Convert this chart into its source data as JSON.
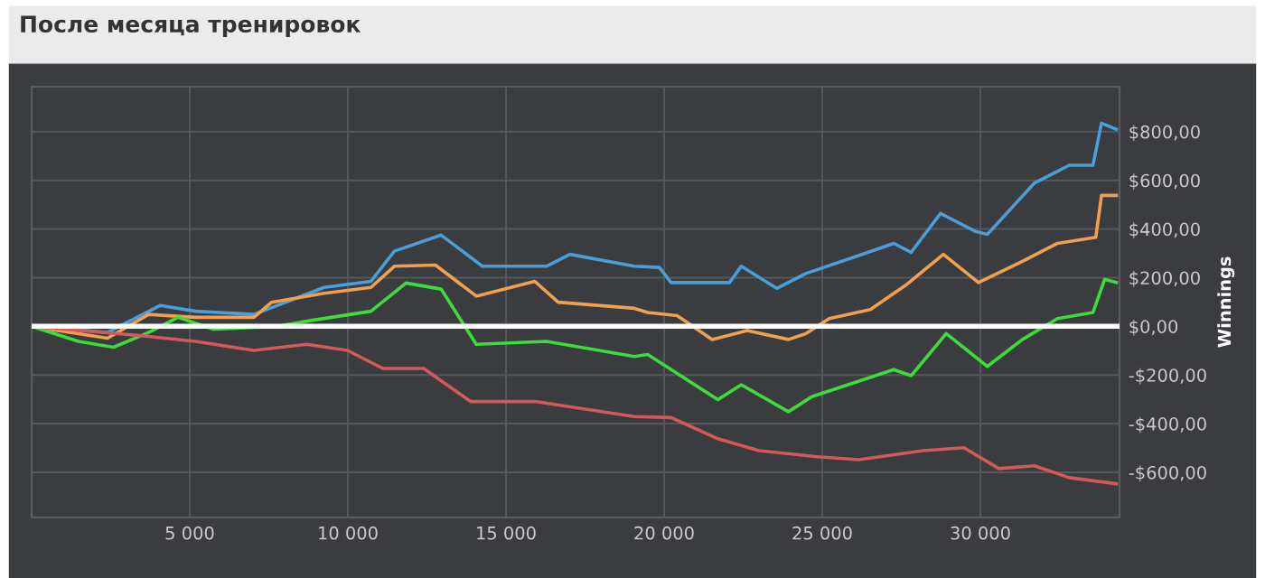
{
  "chart_data": {
    "type": "line",
    "title": "После месяца тренировок",
    "ylabel": "Winnings",
    "xlim": [
      0,
      34400
    ],
    "ylim": [
      -785,
      985
    ],
    "xticks": [
      {
        "value": 5000,
        "label": "5 000"
      },
      {
        "value": 10000,
        "label": "10 000"
      },
      {
        "value": 15000,
        "label": "15 000"
      },
      {
        "value": 20000,
        "label": "20 000"
      },
      {
        "value": 25000,
        "label": "25 000"
      },
      {
        "value": 30000,
        "label": "30 000"
      }
    ],
    "yticks": [
      {
        "value": -600,
        "label": "-$600,00"
      },
      {
        "value": -400,
        "label": "-$400,00"
      },
      {
        "value": -200,
        "label": "-$200,00"
      },
      {
        "value": 0,
        "label": "$0,00"
      },
      {
        "value": 200,
        "label": "$200,00"
      },
      {
        "value": 400,
        "label": "$400,00"
      },
      {
        "value": 600,
        "label": "$600,00"
      },
      {
        "value": 800,
        "label": "$800,00"
      }
    ],
    "grid": true,
    "legend": false,
    "marker": "none",
    "line_style": "solid",
    "ref_lines": [
      {
        "axis": "y",
        "value": 0,
        "color": "#ffffff"
      }
    ],
    "series": [
      {
        "color": "#4a9fd8",
        "x": [
          0,
          2400,
          4070,
          5180,
          7030,
          9250,
          10730,
          11470,
          12950,
          14250,
          16280,
          17020,
          19060,
          19850,
          20220,
          22070,
          22440,
          23560,
          24480,
          26150,
          27260,
          27810,
          28740,
          29850,
          30220,
          31700,
          32810,
          33560,
          33830,
          34300
        ],
        "values": [
          0,
          -25,
          86,
          62,
          49,
          160,
          185,
          309,
          375,
          247,
          247,
          296,
          247,
          242,
          180,
          180,
          247,
          156,
          217,
          291,
          341,
          304,
          464,
          390,
          378,
          588,
          662,
          662,
          835,
          810
        ]
      },
      {
        "color": "#f0a050",
        "x": [
          0,
          2400,
          3700,
          5180,
          7030,
          7590,
          9250,
          10730,
          11470,
          12770,
          14060,
          15910,
          16650,
          19060,
          19480,
          20410,
          21520,
          22630,
          23930,
          24480,
          25220,
          26520,
          27630,
          28830,
          29940,
          31330,
          32440,
          33650,
          33830,
          34300
        ],
        "values": [
          0,
          -49,
          49,
          37,
          37,
          99,
          136,
          160,
          247,
          252,
          124,
          185,
          99,
          74,
          57,
          44,
          -54,
          -17,
          -54,
          -30,
          32,
          69,
          168,
          296,
          180,
          267,
          341,
          366,
          538,
          538
        ]
      },
      {
        "color": "#3ddc3d",
        "x": [
          0,
          1480,
          2590,
          3700,
          4630,
          5740,
          7770,
          8880,
          10730,
          11840,
          12950,
          14060,
          16280,
          19060,
          19480,
          21700,
          22440,
          23930,
          24670,
          27260,
          27810,
          28920,
          30220,
          31330,
          32440,
          33560,
          33930,
          34300
        ],
        "values": [
          0,
          -62,
          -86,
          -25,
          37,
          -12,
          0,
          25,
          62,
          178,
          153,
          -74,
          -62,
          -124,
          -116,
          -301,
          -240,
          -351,
          -289,
          -178,
          -203,
          -30,
          -165,
          -54,
          32,
          57,
          193,
          180
        ]
      },
      {
        "color": "#d35a5a",
        "x": [
          0,
          3330,
          5180,
          7030,
          8700,
          9990,
          11100,
          12400,
          13880,
          15910,
          19060,
          20220,
          21700,
          23000,
          24850,
          26150,
          28190,
          29480,
          30590,
          31700,
          32810,
          34300
        ],
        "values": [
          0,
          -37,
          -62,
          -99,
          -74,
          -99,
          -173,
          -173,
          -309,
          -309,
          -371,
          -375,
          -462,
          -511,
          -536,
          -548,
          -511,
          -499,
          -585,
          -573,
          -622,
          -647
        ]
      }
    ]
  }
}
